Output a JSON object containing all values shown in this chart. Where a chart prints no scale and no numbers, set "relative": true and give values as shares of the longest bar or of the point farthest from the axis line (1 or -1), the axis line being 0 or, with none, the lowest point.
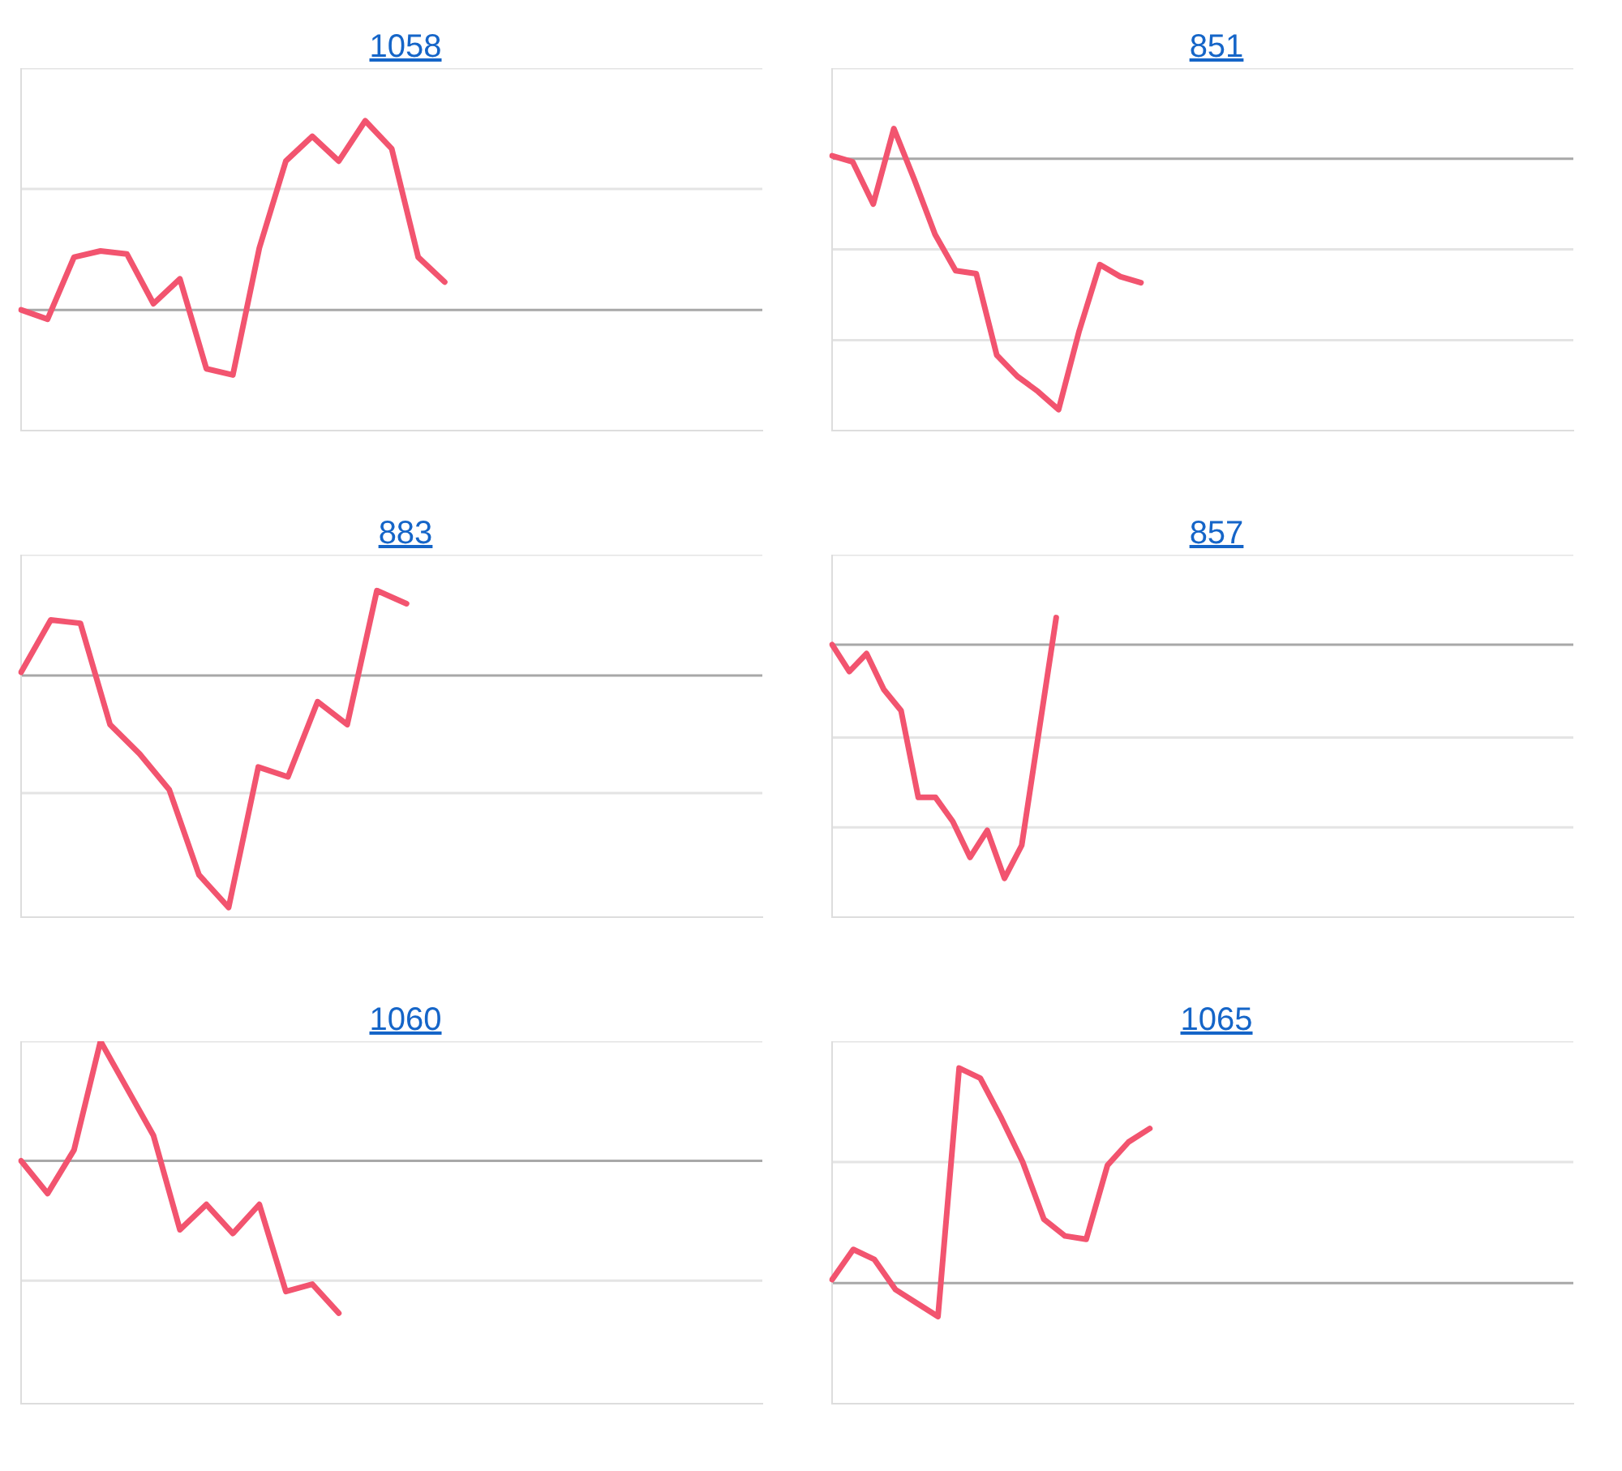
{
  "chart_data": [
    {
      "type": "line",
      "title": "1058",
      "relative": true,
      "marker": "none",
      "color": "#f2546f",
      "ref_lines": [
        {
          "axis": "y",
          "value": 0.39,
          "color": "#a8a8a8"
        },
        {
          "axis": "y",
          "value": 0.78,
          "color": "#e4e4e4"
        },
        {
          "axis": "y",
          "value": 1.17,
          "color": "#e4e4e4"
        }
      ],
      "categories": [
        null,
        null,
        null,
        null,
        null,
        null,
        null,
        null,
        null,
        null,
        null,
        null,
        null,
        null,
        null,
        null,
        null,
        null,
        null,
        null,
        null,
        null,
        null,
        null,
        null,
        null,
        null,
        null,
        null
      ],
      "values": [
        0.39,
        0.36,
        0.56,
        0.58,
        0.57,
        0.41,
        0.49,
        0.2,
        0.18,
        0.59,
        0.87,
        0.95,
        0.87,
        1,
        0.91,
        0.56,
        0.48,
        null,
        null,
        null,
        null,
        null,
        null,
        null,
        null,
        null,
        null,
        null,
        null
      ]
    },
    {
      "type": "line",
      "title": "851",
      "relative": true,
      "marker": "none",
      "color": "#f2546f",
      "ref_lines": [
        {
          "axis": "y",
          "value": 0.9,
          "color": "#a8a8a8"
        },
        {
          "axis": "y",
          "value": 0.3,
          "color": "#e4e4e4"
        },
        {
          "axis": "y",
          "value": 0.6,
          "color": "#e4e4e4"
        },
        {
          "axis": "y",
          "value": 1.2,
          "color": "#e4e4e4"
        }
      ],
      "categories": [
        null,
        null,
        null,
        null,
        null,
        null,
        null,
        null,
        null,
        null,
        null,
        null,
        null,
        null,
        null,
        null,
        null,
        null,
        null,
        null,
        null,
        null,
        null,
        null,
        null,
        null,
        null,
        null,
        null,
        null,
        null,
        null,
        null,
        null,
        null,
        null,
        null
      ],
      "values": [
        0.91,
        0.89,
        0.75,
        1,
        0.83,
        0.65,
        0.53,
        0.52,
        0.25,
        0.18,
        0.13,
        0.07,
        0.33,
        0.55,
        0.51,
        0.49,
        null,
        null,
        null,
        null,
        null,
        null,
        null,
        null,
        null,
        null,
        null,
        null,
        null,
        null,
        null,
        null,
        null,
        null,
        null,
        null,
        null
      ]
    },
    {
      "type": "line",
      "title": "883",
      "relative": true,
      "marker": "none",
      "color": "#f2546f",
      "ref_lines": [
        {
          "axis": "y",
          "value": 0.74,
          "color": "#a8a8a8"
        },
        {
          "axis": "y",
          "value": 0.38,
          "color": "#e4e4e4"
        },
        {
          "axis": "y",
          "value": 1.11,
          "color": "#e4e4e4"
        }
      ],
      "categories": [
        null,
        null,
        null,
        null,
        null,
        null,
        null,
        null,
        null,
        null,
        null,
        null,
        null,
        null,
        null,
        null,
        null,
        null,
        null,
        null,
        null,
        null,
        null,
        null,
        null,
        null
      ],
      "values": [
        0.75,
        0.91,
        0.9,
        0.59,
        0.5,
        0.39,
        0.13,
        0.03,
        0.46,
        0.43,
        0.66,
        0.59,
        1,
        0.96,
        null,
        null,
        null,
        null,
        null,
        null,
        null,
        null,
        null,
        null,
        null,
        null
      ]
    },
    {
      "type": "line",
      "title": "857",
      "relative": true,
      "marker": "none",
      "color": "#f2546f",
      "ref_lines": [
        {
          "axis": "y",
          "value": 0.91,
          "color": "#a8a8a8"
        },
        {
          "axis": "y",
          "value": 0.3,
          "color": "#e4e4e4"
        },
        {
          "axis": "y",
          "value": 0.6,
          "color": "#e4e4e4"
        },
        {
          "axis": "y",
          "value": 1.21,
          "color": "#e4e4e4"
        }
      ],
      "categories": [
        null,
        null,
        null,
        null,
        null,
        null,
        null,
        null,
        null,
        null,
        null,
        null,
        null,
        null,
        null,
        null,
        null,
        null,
        null,
        null,
        null,
        null,
        null,
        null,
        null,
        null,
        null,
        null,
        null,
        null,
        null,
        null,
        null,
        null,
        null,
        null,
        null,
        null,
        null,
        null,
        null,
        null,
        null,
        null
      ],
      "values": [
        0.91,
        0.82,
        0.88,
        0.76,
        0.69,
        0.4,
        0.4,
        0.32,
        0.2,
        0.29,
        0.13,
        0.24,
        0.62,
        1,
        null,
        null,
        null,
        null,
        null,
        null,
        null,
        null,
        null,
        null,
        null,
        null,
        null,
        null,
        null,
        null,
        null,
        null,
        null,
        null,
        null,
        null,
        null,
        null,
        null,
        null,
        null,
        null,
        null,
        null
      ]
    },
    {
      "type": "line",
      "title": "1060",
      "relative": true,
      "marker": "none",
      "color": "#f2546f",
      "ref_lines": [
        {
          "axis": "y",
          "value": 0.67,
          "color": "#a8a8a8"
        },
        {
          "axis": "y",
          "value": 0.34,
          "color": "#e4e4e4"
        },
        {
          "axis": "y",
          "value": 1.0,
          "color": "#e4e4e4"
        }
      ],
      "categories": [
        null,
        null,
        null,
        null,
        null,
        null,
        null,
        null,
        null,
        null,
        null,
        null,
        null,
        null,
        null,
        null,
        null,
        null,
        null,
        null,
        null,
        null,
        null,
        null,
        null,
        null,
        null,
        null,
        null
      ],
      "values": [
        0.67,
        0.58,
        0.7,
        1,
        0.87,
        0.74,
        0.48,
        0.55,
        0.47,
        0.55,
        0.31,
        0.33,
        0.25,
        null,
        null,
        null,
        null,
        null,
        null,
        null,
        null,
        null,
        null,
        null,
        null,
        null,
        null,
        null,
        null
      ]
    },
    {
      "type": "line",
      "title": "1065",
      "relative": true,
      "marker": "none",
      "color": "#f2546f",
      "ref_lines": [
        {
          "axis": "y",
          "value": 0.36,
          "color": "#a8a8a8"
        },
        {
          "axis": "y",
          "value": 0.72,
          "color": "#e4e4e4"
        },
        {
          "axis": "y",
          "value": 1.08,
          "color": "#e4e4e4"
        }
      ],
      "categories": [
        null,
        null,
        null,
        null,
        null,
        null,
        null,
        null,
        null,
        null,
        null,
        null,
        null,
        null,
        null,
        null,
        null,
        null,
        null,
        null,
        null,
        null,
        null,
        null,
        null,
        null,
        null,
        null,
        null,
        null,
        null,
        null,
        null,
        null,
        null,
        null
      ],
      "values": [
        0.37,
        0.46,
        0.43,
        0.34,
        0.3,
        0.26,
        1,
        0.97,
        0.85,
        0.72,
        0.55,
        0.5,
        0.49,
        0.71,
        0.78,
        0.82,
        null,
        null,
        null,
        null,
        null,
        null,
        null,
        null,
        null,
        null,
        null,
        null,
        null,
        null,
        null,
        null,
        null,
        null,
        null,
        null
      ]
    }
  ]
}
